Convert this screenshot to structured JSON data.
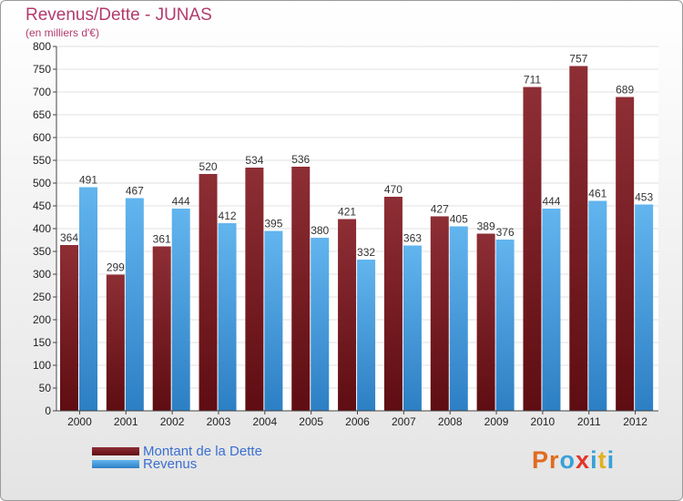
{
  "header": {
    "title": "Revenus/Dette - JUNAS",
    "subtitle": "(en milliers d'€)"
  },
  "legend": {
    "debt_label": "Montant de la Dette",
    "revenue_label": "Revenus"
  },
  "logo": {
    "letters": [
      "P",
      "r",
      "o",
      "x",
      "i",
      "t",
      "i"
    ],
    "colors": [
      "#e06b1f",
      "#e06b1f",
      "#3aa0d8",
      "#e0352b",
      "#3aa0d8",
      "#e0b020",
      "#3aa0d8"
    ]
  },
  "colors": {
    "debt": "#7a1a22",
    "revenue": "#5aabe8"
  },
  "chart_data": {
    "type": "bar",
    "categories": [
      "2000",
      "2001",
      "2002",
      "2003",
      "2004",
      "2005",
      "2006",
      "2007",
      "2008",
      "2009",
      "2010",
      "2011",
      "2012"
    ],
    "series": [
      {
        "name": "Montant de la Dette",
        "values": [
          364,
          299,
          361,
          520,
          534,
          536,
          421,
          470,
          427,
          389,
          711,
          757,
          689
        ]
      },
      {
        "name": "Revenus",
        "values": [
          491,
          467,
          444,
          412,
          395,
          380,
          332,
          363,
          405,
          376,
          444,
          461,
          453
        ]
      }
    ],
    "title": "Revenus/Dette - JUNAS",
    "ylabel": "(en milliers d'€)",
    "ylim": [
      0,
      800
    ],
    "yticks": [
      0,
      50,
      100,
      150,
      200,
      250,
      300,
      350,
      400,
      450,
      500,
      550,
      600,
      650,
      700,
      750,
      800
    ],
    "grid": true,
    "legend_position": "bottom-left"
  }
}
